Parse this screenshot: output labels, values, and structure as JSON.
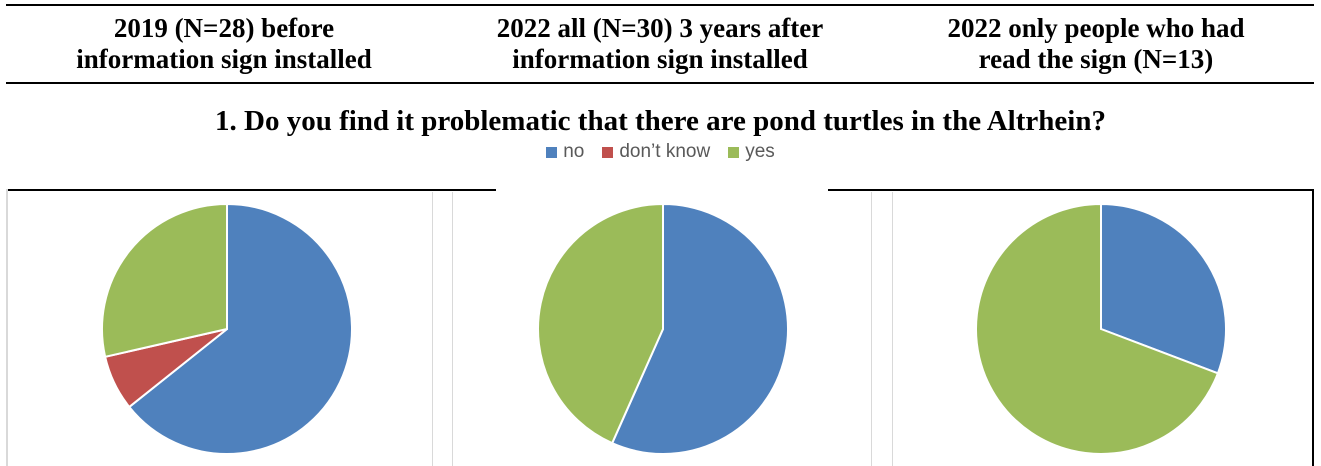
{
  "header": {
    "columns": [
      {
        "line1": "2019 (N=28) before",
        "line2": "information sign installed"
      },
      {
        "line1": "2022 all (N=30) 3 years after",
        "line2": "information sign installed"
      },
      {
        "line1": "2022 only people who had",
        "line2": "read the sign (N=13)"
      }
    ]
  },
  "question": "1. Do you find it problematic that there are pond turtles in the Altrhein?",
  "legend": [
    {
      "label": "no",
      "color": "#4f81bd"
    },
    {
      "label": "don’t know",
      "color": "#c0504d"
    },
    {
      "label": "yes",
      "color": "#9bbb59"
    }
  ],
  "chart_data": [
    {
      "type": "pie",
      "categories": [
        "no",
        "don’t know",
        "yes"
      ],
      "values": [
        18,
        2,
        8
      ],
      "colors": [
        "#4f81bd",
        "#c0504d",
        "#9bbb59"
      ]
    },
    {
      "type": "pie",
      "categories": [
        "no",
        "don’t know",
        "yes"
      ],
      "values": [
        17,
        0,
        13
      ],
      "colors": [
        "#4f81bd",
        "#c0504d",
        "#9bbb59"
      ]
    },
    {
      "type": "pie",
      "categories": [
        "no",
        "don’t know",
        "yes"
      ],
      "values": [
        4,
        0,
        9
      ],
      "colors": [
        "#4f81bd",
        "#c0504d",
        "#9bbb59"
      ]
    }
  ]
}
